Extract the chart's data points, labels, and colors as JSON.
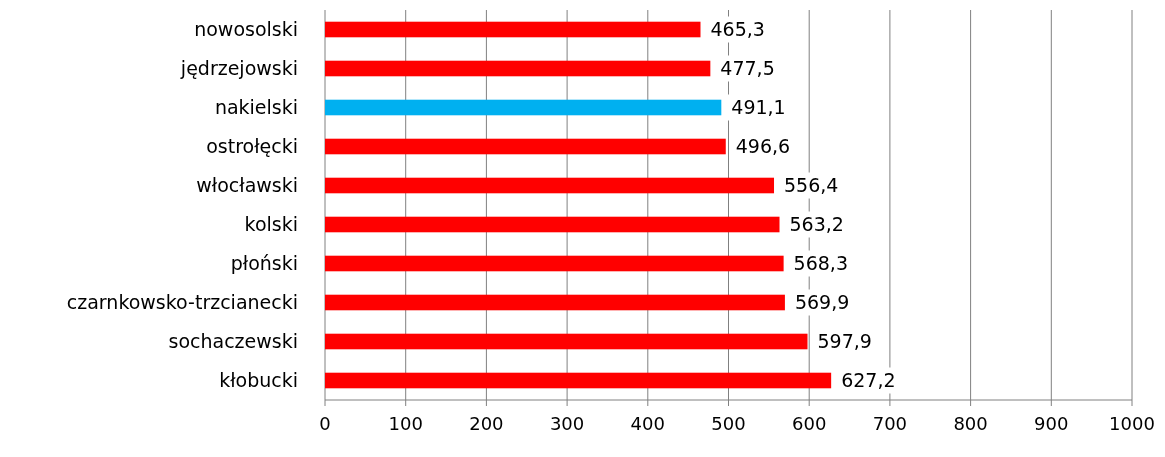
{
  "chart_data": {
    "type": "bar",
    "orientation": "horizontal",
    "categories": [
      "nowosolski",
      "jędrzejowski",
      "nakielski",
      "ostrołęcki",
      "włocławski",
      "kolski",
      "płoński",
      "czarnkowsko-trzcianecki",
      "sochaczewski",
      "kłobucki"
    ],
    "values": [
      465.3,
      477.5,
      491.1,
      496.6,
      556.4,
      563.2,
      568.3,
      569.9,
      597.9,
      627.2
    ],
    "colors": [
      "#ff0000",
      "#ff0000",
      "#00b0f0",
      "#ff0000",
      "#ff0000",
      "#ff0000",
      "#ff0000",
      "#ff0000",
      "#ff0000",
      "#ff0000"
    ],
    "value_labels": [
      "465,3",
      "477,5",
      "491,1",
      "496,6",
      "556,4",
      "563,2",
      "568,3",
      "569,9",
      "597,9",
      "627,2"
    ],
    "xlim": [
      0,
      1000
    ],
    "xticks": [
      0,
      100,
      200,
      300,
      400,
      500,
      600,
      700,
      800,
      900,
      1000
    ],
    "grid": "x"
  }
}
